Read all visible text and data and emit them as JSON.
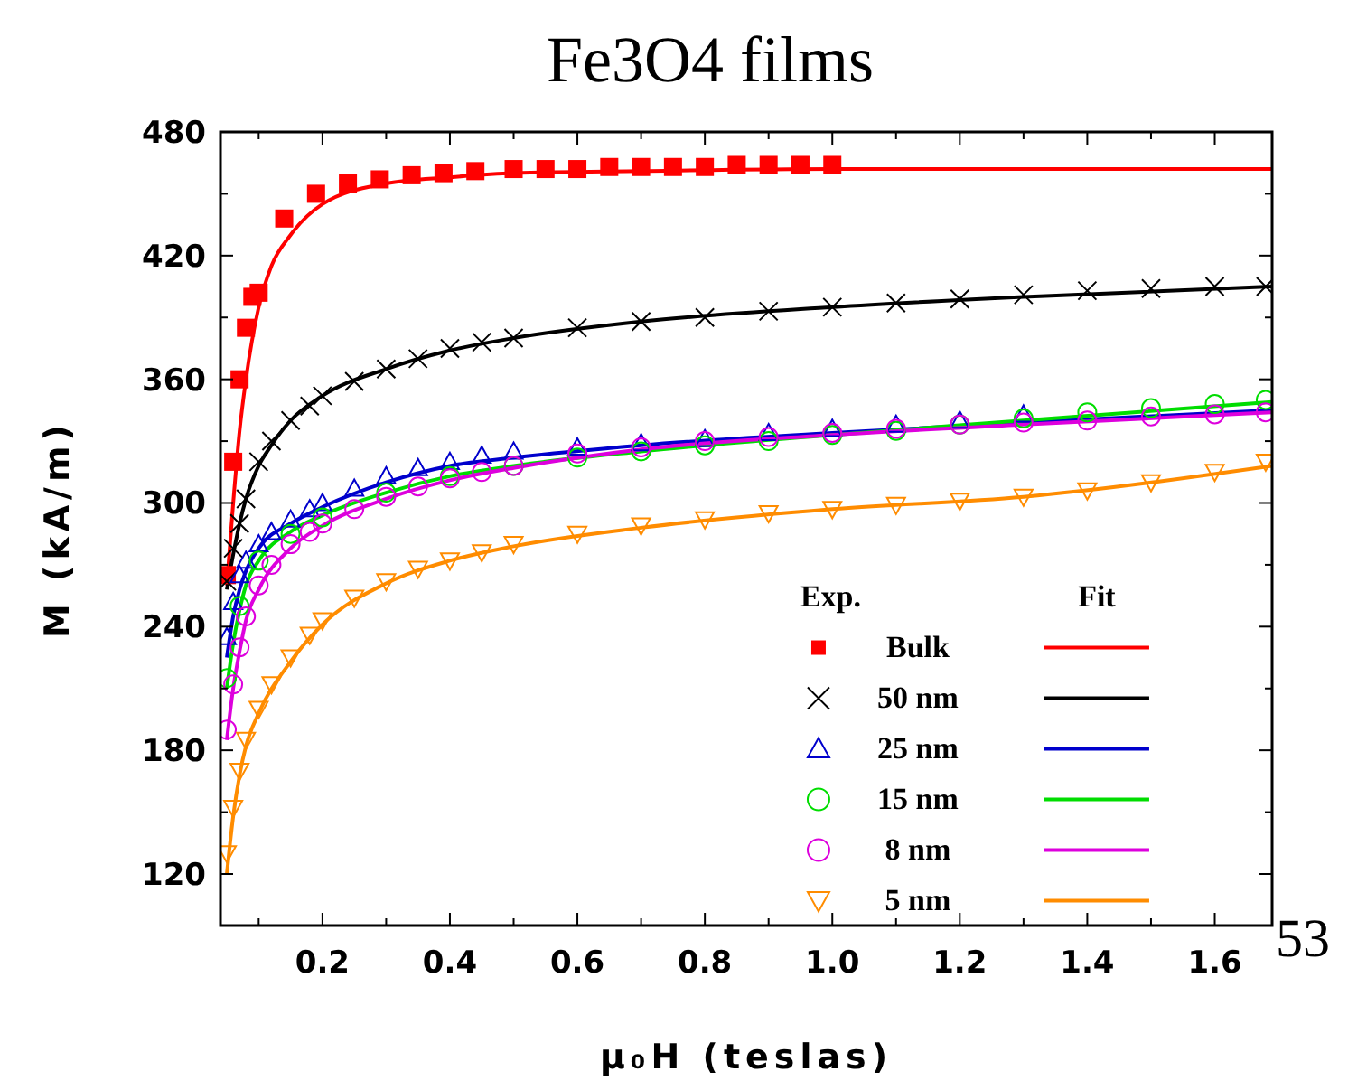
{
  "chart_data": {
    "type": "scatter",
    "title": "Fe3O4 films",
    "xlabel": "μ₀H (teslas)",
    "ylabel": "M (kA/m)",
    "legend_title": "Exp.",
    "annotations": [
      "Fit",
      "53"
    ],
    "xlim": [
      0.04,
      1.69
    ],
    "ylim": [
      95,
      480
    ],
    "xticks": [
      {
        "value": 0.1,
        "label": null
      },
      {
        "value": 0.2,
        "label": "0.2"
      },
      {
        "value": 0.3,
        "label": null
      },
      {
        "value": 0.4,
        "label": "0.4"
      },
      {
        "value": 0.5,
        "label": null
      },
      {
        "value": 0.6,
        "label": "0.6"
      },
      {
        "value": 0.7,
        "label": null
      },
      {
        "value": 0.8,
        "label": "0.8"
      },
      {
        "value": 0.9,
        "label": null
      },
      {
        "value": 1.0,
        "label": "1.0"
      },
      {
        "value": 1.1,
        "label": null
      },
      {
        "value": 1.2,
        "label": "1.2"
      },
      {
        "value": 1.3,
        "label": null
      },
      {
        "value": 1.4,
        "label": "1.4"
      },
      {
        "value": 1.5,
        "label": null
      },
      {
        "value": 1.6,
        "label": "1.6"
      }
    ],
    "yticks": [
      120,
      {
        "value": 150,
        "label": null
      },
      180,
      {
        "value": 210,
        "label": null
      },
      240,
      {
        "value": 270,
        "label": null
      },
      300,
      {
        "value": 330,
        "label": null
      },
      360,
      {
        "value": 390,
        "label": null
      },
      420,
      {
        "value": 450,
        "label": null
      },
      480
    ],
    "grid": false,
    "legend": "bottom right",
    "series": [
      {
        "name": "Bulk",
        "marker": "square",
        "color": "#ff0000",
        "x": [
          0.05,
          0.06,
          0.07,
          0.08,
          0.09,
          0.1,
          0.14,
          0.19,
          0.24,
          0.29,
          0.34,
          0.39,
          0.44,
          0.5,
          0.55,
          0.6,
          0.65,
          0.7,
          0.75,
          0.8,
          0.85,
          0.9,
          0.95,
          1.0
        ],
        "values": [
          265,
          320,
          360,
          385,
          400,
          402,
          438,
          450,
          455,
          457,
          459,
          460,
          461,
          462,
          462,
          462,
          463,
          463,
          463,
          463,
          464,
          464,
          464,
          464
        ]
      },
      {
        "name": "50 nm",
        "marker": "cross",
        "color": "#000000",
        "x": [
          0.05,
          0.06,
          0.07,
          0.08,
          0.1,
          0.12,
          0.15,
          0.18,
          0.2,
          0.25,
          0.3,
          0.35,
          0.4,
          0.45,
          0.5,
          0.6,
          0.7,
          0.8,
          0.9,
          1.0,
          1.1,
          1.2,
          1.3,
          1.4,
          1.5,
          1.6,
          1.68
        ],
        "values": [
          262,
          278,
          290,
          302,
          320,
          330,
          340,
          347,
          352,
          359,
          365,
          370,
          375,
          378,
          380,
          385,
          388,
          390,
          393,
          395,
          397,
          399,
          401,
          403,
          404,
          405,
          405
        ]
      },
      {
        "name": "25 nm",
        "marker": "triangle",
        "color": "#0000cc",
        "x": [
          0.05,
          0.06,
          0.07,
          0.08,
          0.1,
          0.12,
          0.15,
          0.18,
          0.2,
          0.25,
          0.3,
          0.35,
          0.4,
          0.45,
          0.5,
          0.6,
          0.7,
          0.8,
          0.9,
          1.0,
          1.1,
          1.2,
          1.3
        ],
        "values": [
          235,
          252,
          265,
          272,
          280,
          286,
          292,
          297,
          300,
          307,
          313,
          317,
          320,
          323,
          325,
          327,
          329,
          331,
          334,
          336,
          338,
          340,
          343
        ]
      },
      {
        "name": "15 nm",
        "marker": "circle",
        "color": "#00dd00",
        "x": [
          0.05,
          0.07,
          0.1,
          0.15,
          0.2,
          0.3,
          0.4,
          0.5,
          0.6,
          0.7,
          0.8,
          0.9,
          1.0,
          1.1,
          1.2,
          1.3,
          1.4,
          1.5,
          1.6,
          1.68
        ],
        "values": [
          215,
          250,
          272,
          285,
          293,
          305,
          313,
          318,
          322,
          325,
          328,
          330,
          333,
          335,
          338,
          341,
          344,
          346,
          348,
          350
        ]
      },
      {
        "name": "8 nm",
        "marker": "circle",
        "color": "#dd00dd",
        "x": [
          0.05,
          0.06,
          0.07,
          0.08,
          0.1,
          0.12,
          0.15,
          0.18,
          0.2,
          0.25,
          0.3,
          0.35,
          0.4,
          0.45,
          0.5,
          0.6,
          0.7,
          0.8,
          0.9,
          1.0,
          1.1,
          1.2,
          1.3,
          1.4,
          1.5,
          1.6,
          1.68
        ],
        "values": [
          190,
          212,
          230,
          245,
          260,
          270,
          280,
          286,
          290,
          297,
          303,
          308,
          312,
          315,
          318,
          324,
          327,
          330,
          332,
          334,
          336,
          338,
          339,
          340,
          342,
          343,
          344
        ]
      },
      {
        "name": "5 nm",
        "marker": "triangle-down",
        "color": "#ff8c00",
        "x": [
          0.05,
          0.06,
          0.07,
          0.08,
          0.1,
          0.12,
          0.15,
          0.18,
          0.2,
          0.25,
          0.3,
          0.35,
          0.4,
          0.45,
          0.5,
          0.6,
          0.7,
          0.8,
          0.9,
          1.0,
          1.1,
          1.2,
          1.3,
          1.4,
          1.5,
          1.6,
          1.68
        ],
        "values": [
          130,
          152,
          170,
          185,
          200,
          212,
          225,
          236,
          243,
          254,
          262,
          268,
          272,
          276,
          280,
          285,
          289,
          292,
          295,
          297,
          299,
          301,
          303,
          306,
          310,
          315,
          320
        ]
      },
      {
        "type": "line",
        "line_style": "solid",
        "color": "#ff0000",
        "x": [
          0.05,
          0.06,
          0.07,
          0.08,
          0.1,
          0.12,
          0.15,
          0.2,
          0.3,
          0.4,
          0.5,
          0.7,
          1.0,
          1.4,
          1.69
        ],
        "values": [
          260,
          300,
          335,
          360,
          395,
          415,
          430,
          445,
          455,
          458,
          460,
          461,
          462,
          462,
          462
        ]
      },
      {
        "type": "line",
        "line_style": "solid",
        "color": "#000000",
        "x": [
          0.05,
          0.06,
          0.07,
          0.08,
          0.1,
          0.12,
          0.15,
          0.2,
          0.3,
          0.4,
          0.5,
          0.7,
          1.0,
          1.3,
          1.69
        ],
        "values": [
          258,
          275,
          290,
          302,
          318,
          328,
          340,
          352,
          365,
          374,
          380,
          388,
          395,
          400,
          405
        ]
      },
      {
        "type": "line",
        "line_style": "solid",
        "color": "#0000cc",
        "x": [
          0.05,
          0.06,
          0.07,
          0.08,
          0.1,
          0.15,
          0.2,
          0.3,
          0.4,
          0.5,
          0.7,
          1.0,
          1.3,
          1.69
        ],
        "values": [
          225,
          245,
          258,
          267,
          278,
          290,
          298,
          310,
          318,
          322,
          328,
          334,
          339,
          345
        ]
      },
      {
        "type": "line",
        "line_style": "solid",
        "color": "#00dd00",
        "x": [
          0.05,
          0.06,
          0.07,
          0.08,
          0.1,
          0.15,
          0.2,
          0.3,
          0.4,
          0.5,
          0.7,
          1.0,
          1.3,
          1.69
        ],
        "values": [
          210,
          232,
          248,
          260,
          272,
          286,
          294,
          305,
          313,
          318,
          325,
          333,
          340,
          349
        ]
      },
      {
        "type": "line",
        "line_style": "solid",
        "color": "#dd00dd",
        "x": [
          0.05,
          0.06,
          0.07,
          0.08,
          0.1,
          0.15,
          0.2,
          0.3,
          0.4,
          0.5,
          0.7,
          1.0,
          1.3,
          1.69
        ],
        "values": [
          185,
          210,
          228,
          243,
          258,
          278,
          289,
          302,
          311,
          317,
          326,
          333,
          338,
          344
        ]
      },
      {
        "type": "line",
        "line_style": "solid",
        "color": "#ff8c00",
        "x": [
          0.05,
          0.06,
          0.07,
          0.08,
          0.1,
          0.15,
          0.2,
          0.3,
          0.4,
          0.5,
          0.7,
          1.0,
          1.3,
          1.69
        ],
        "values": [
          120,
          148,
          168,
          182,
          198,
          223,
          241,
          261,
          272,
          279,
          288,
          297,
          303,
          318
        ]
      }
    ]
  }
}
